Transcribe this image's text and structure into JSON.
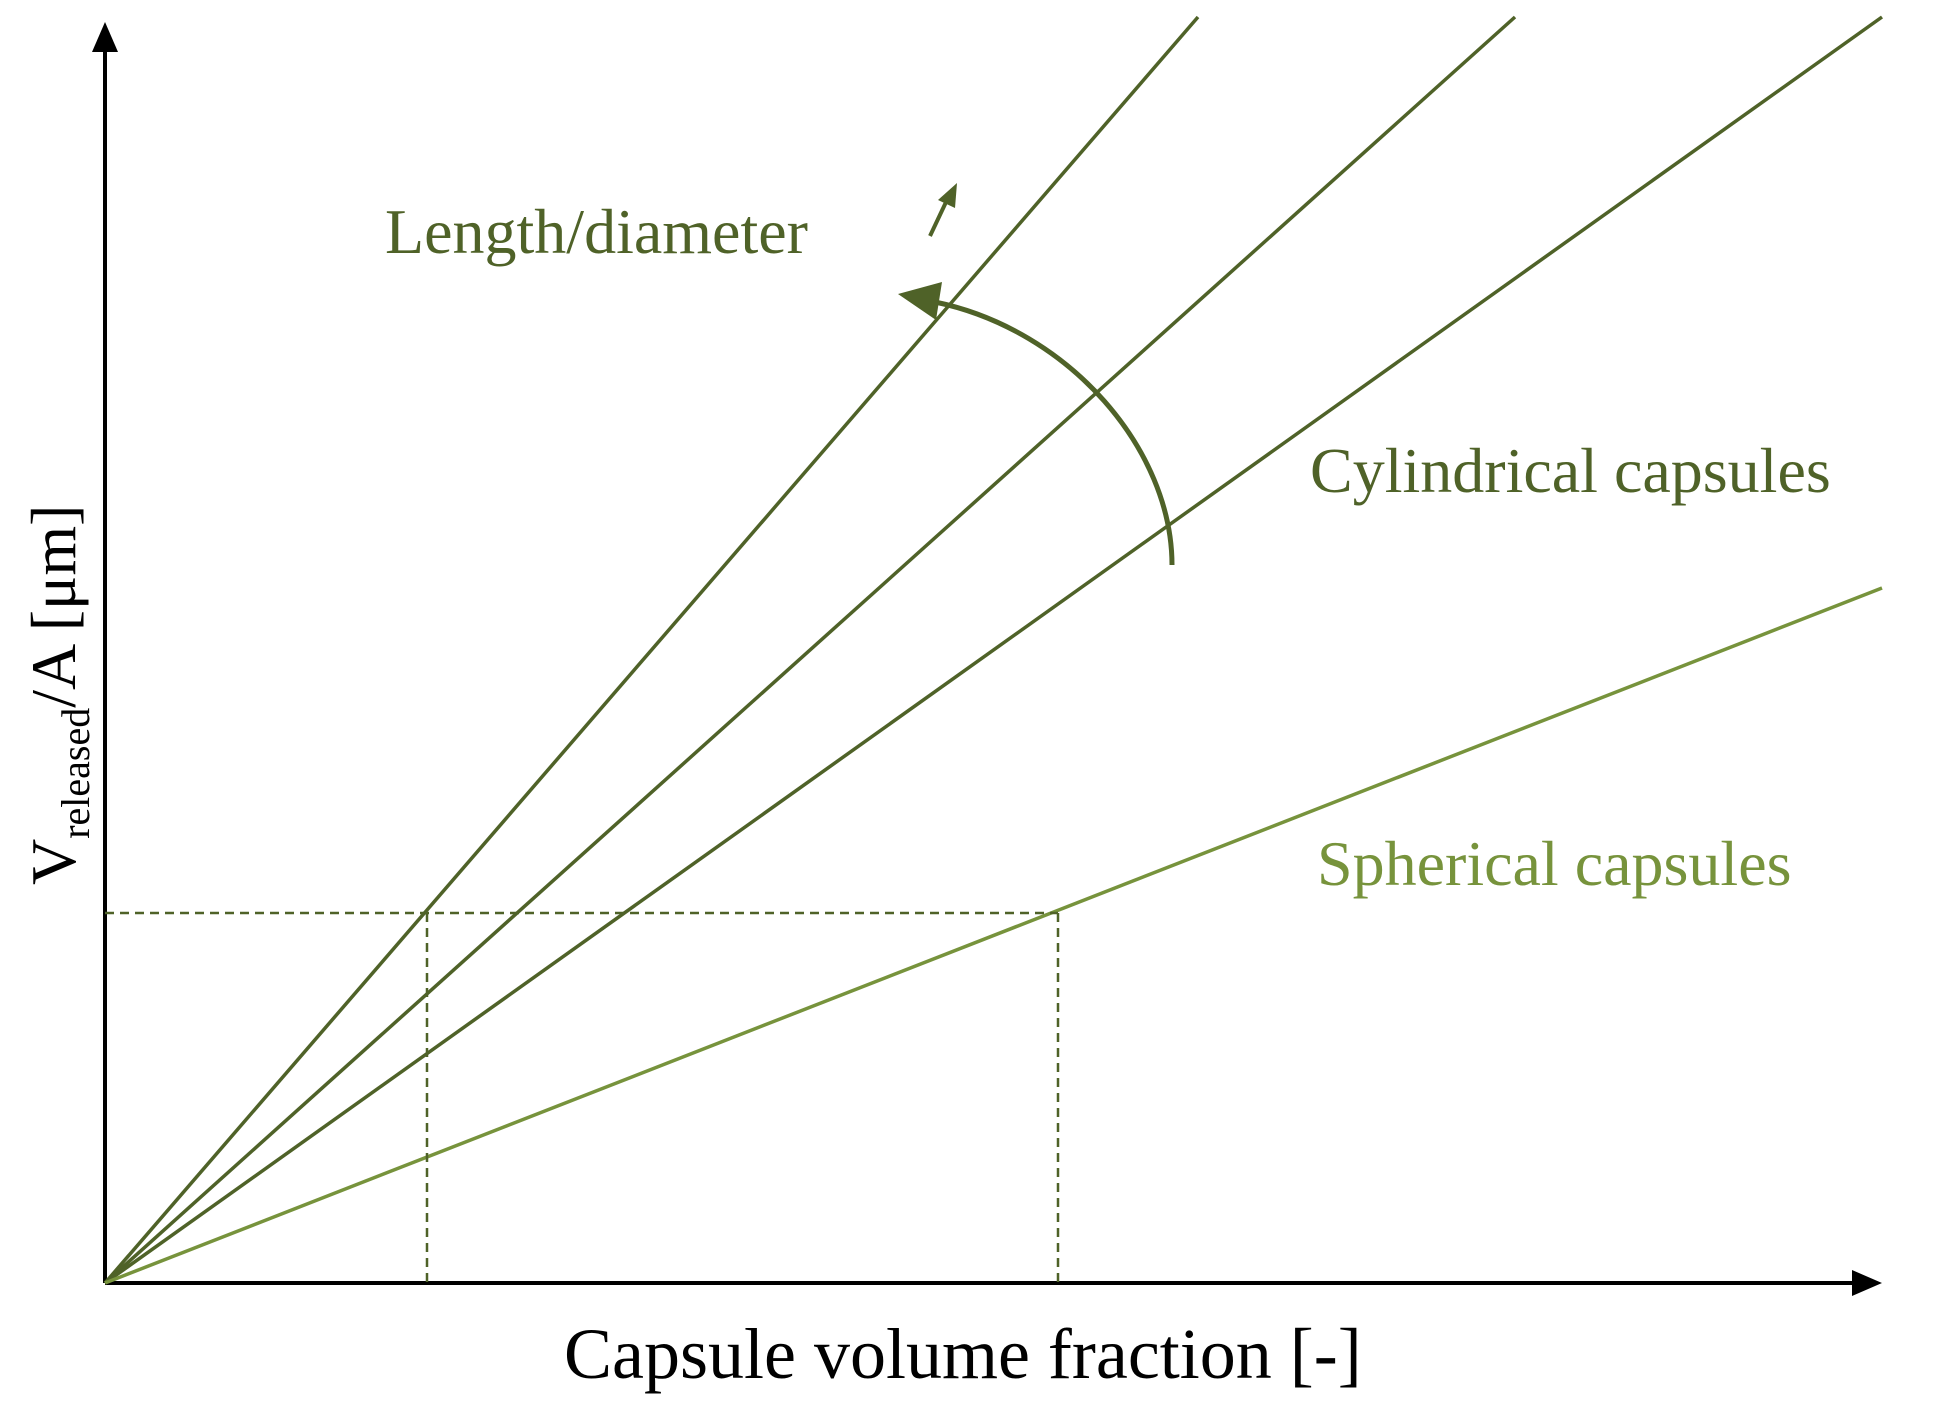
{
  "diagram": {
    "x_axis_label": "Capsule volume fraction [-]",
    "y_axis_label": {
      "main": "V",
      "subscript": "released",
      "suffix": "/A [μm]"
    },
    "annotations": {
      "length_diameter": "Length/diameter",
      "cylindrical": "Cylindrical capsules",
      "spherical": "Spherical capsules"
    },
    "lines": [
      {
        "name": "cylindrical-steep",
        "kind": "cylindrical"
      },
      {
        "name": "cylindrical-medium",
        "kind": "cylindrical"
      },
      {
        "name": "cylindrical-shallow",
        "kind": "cylindrical"
      },
      {
        "name": "spherical",
        "kind": "spherical"
      }
    ],
    "colors": {
      "cylindrical": "#4f6228",
      "spherical": "#77933c",
      "axis": "#000000"
    }
  }
}
